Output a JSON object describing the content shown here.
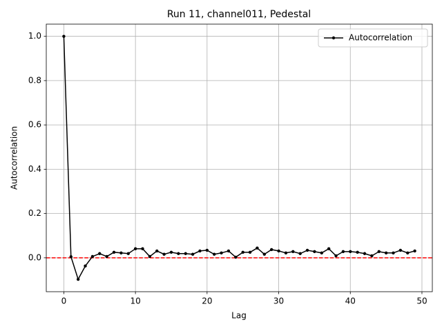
{
  "chart_data": {
    "type": "line",
    "title": "Run 11, channel011, Pedestal",
    "x_label": "Lag",
    "y_label": "Autocorrelation",
    "x": [
      0,
      1,
      2,
      3,
      4,
      5,
      6,
      7,
      8,
      9,
      10,
      11,
      12,
      13,
      14,
      15,
      16,
      17,
      18,
      19,
      20,
      21,
      22,
      23,
      24,
      25,
      26,
      27,
      28,
      29,
      30,
      31,
      32,
      33,
      34,
      35,
      36,
      37,
      38,
      39,
      40,
      41,
      42,
      43,
      44,
      45,
      46,
      47,
      48,
      49
    ],
    "series": [
      {
        "name": "Autocorrelation",
        "color": "#000000",
        "values": [
          1.0,
          0.005,
          -0.097,
          -0.037,
          0.006,
          0.019,
          0.006,
          0.025,
          0.022,
          0.019,
          0.041,
          0.041,
          0.006,
          0.031,
          0.016,
          0.025,
          0.019,
          0.019,
          0.016,
          0.031,
          0.034,
          0.016,
          0.022,
          0.031,
          0.003,
          0.025,
          0.025,
          0.044,
          0.016,
          0.037,
          0.031,
          0.022,
          0.028,
          0.019,
          0.034,
          0.028,
          0.022,
          0.041,
          0.009,
          0.028,
          0.028,
          0.025,
          0.019,
          0.009,
          0.028,
          0.022,
          0.022,
          0.034,
          0.022,
          0.031
        ]
      }
    ],
    "xlim": [
      -2.45,
      51.45
    ],
    "ylim": [
      -0.153,
      1.055
    ],
    "xticks": [
      0,
      10,
      20,
      30,
      40,
      50
    ],
    "yticks": [
      {
        "value": 0.0,
        "label": "0.0"
      },
      0.2,
      0.4,
      0.6,
      0.8,
      {
        "value": 1.0,
        "label": "1.0"
      }
    ],
    "grid": true,
    "legend": "upper right",
    "hline": {
      "value": 0,
      "color": "#ff0000"
    }
  }
}
